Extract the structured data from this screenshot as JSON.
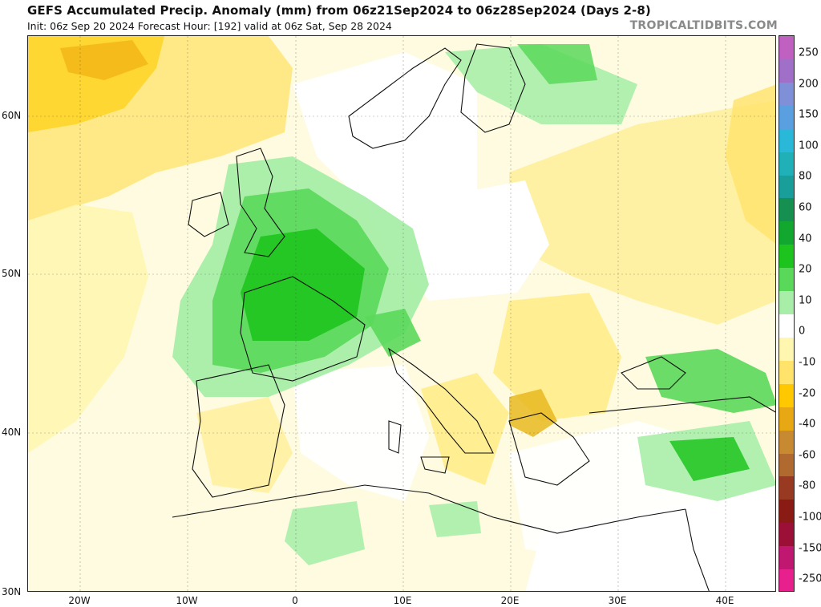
{
  "header": {
    "title": "GEFS Accumulated Precip. Anomaly (mm) from 06z21Sep2024 to 06z28Sep2024 (Days 2-8)",
    "subtitle": "Init: 06z Sep 20 2024   Forecast Hour: [192]   valid at 06z Sat, Sep 28 2024",
    "brand": "TROPICALTIDBITS.COM"
  },
  "map": {
    "lon_range": [
      -25,
      45
    ],
    "lat_range": [
      30,
      65
    ],
    "ocean_color": "#ffffff",
    "land_color": "#ffffff",
    "border_color": "#111111",
    "lat_labels": [
      "60N",
      "50N",
      "40N",
      "30N"
    ],
    "lon_labels": [
      "20W",
      "10W",
      "0",
      "10E",
      "20E",
      "30E",
      "40E"
    ]
  },
  "colorbar": {
    "ticks": [
      "250",
      "200",
      "150",
      "100",
      "80",
      "60",
      "40",
      "20",
      "10",
      "0",
      "-10",
      "-20",
      "-40",
      "-60",
      "-80",
      "-100",
      "-150",
      "-250"
    ],
    "colors": [
      "#c060c0",
      "#a070c8",
      "#8090d8",
      "#5aa0e0",
      "#2ab8d8",
      "#1fb0b8",
      "#1a9e9a",
      "#169050",
      "#12a830",
      "#1ec41e",
      "#5ad85a",
      "#a8eea8",
      "#ffffff",
      "#fff6b0",
      "#ffe36a",
      "#ffc800",
      "#e8a814",
      "#c88a30",
      "#b06a30",
      "#983a22",
      "#8a1a14",
      "#9c1038",
      "#c01870",
      "#e8208e"
    ]
  }
}
